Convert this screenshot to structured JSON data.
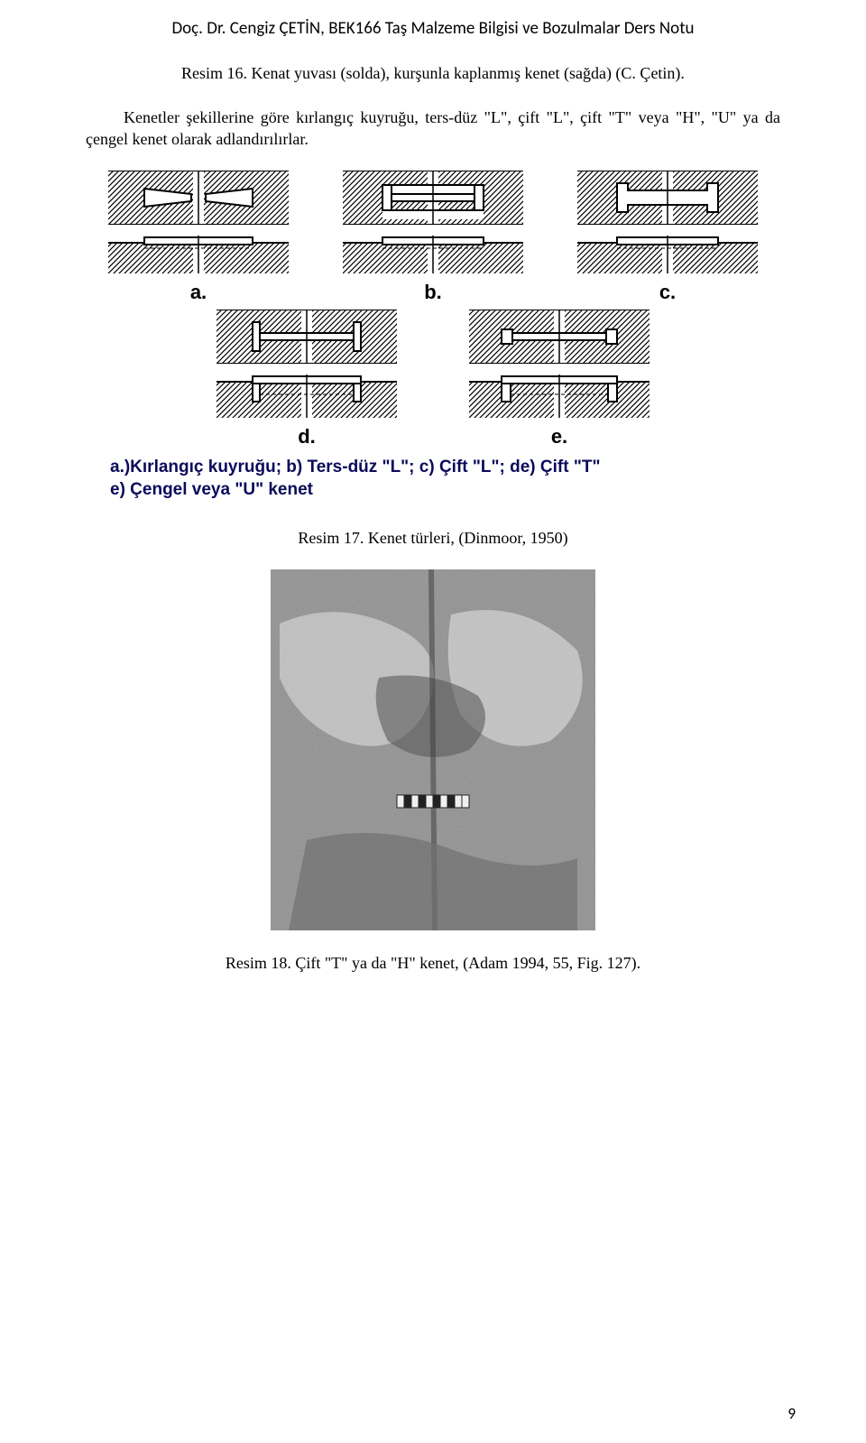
{
  "header": "Doç. Dr. Cengiz ÇETİN, BEK166 Taş Malzeme Bilgisi ve Bozulmalar Ders Notu",
  "caption1": "Resim 16. Kenat yuvası (solda), kurşunla kaplanmış kenet (sağda) (C. Çetin).",
  "bodyText": "Kenetler şekillerine göre kırlangıç kuyruğu, ters-düz \"L\", çift \"L\", çift \"T\" veya \"H\", \"U\" ya da çengel kenet olarak adlandırılırlar.",
  "kenets": {
    "a": {
      "label": "a."
    },
    "b": {
      "label": "b."
    },
    "c": {
      "label": "c."
    },
    "d": {
      "label": "d."
    },
    "e": {
      "label": "e."
    }
  },
  "fig1Caption": "a.)Kırlangıç kuyruğu; b) Ters-düz \"L\"; c) Çift \"L\"; de) Çift \"T\"\ne) Çengel veya \"U\" kenet",
  "caption2": "Resim 17. Kenet türleri, (Dinmoor, 1950)",
  "caption3": "Resim 18. Çift \"T\" ya da \"H\" kenet, (Adam 1994, 55, Fig. 127).",
  "pageNum": "9",
  "colors": {
    "text": "#000000",
    "captionBlue": "#0a0a5a",
    "photoGray": "#bfbfbf",
    "photoDark": "#6a6a6a",
    "photoLight": "#d8d8d8"
  }
}
